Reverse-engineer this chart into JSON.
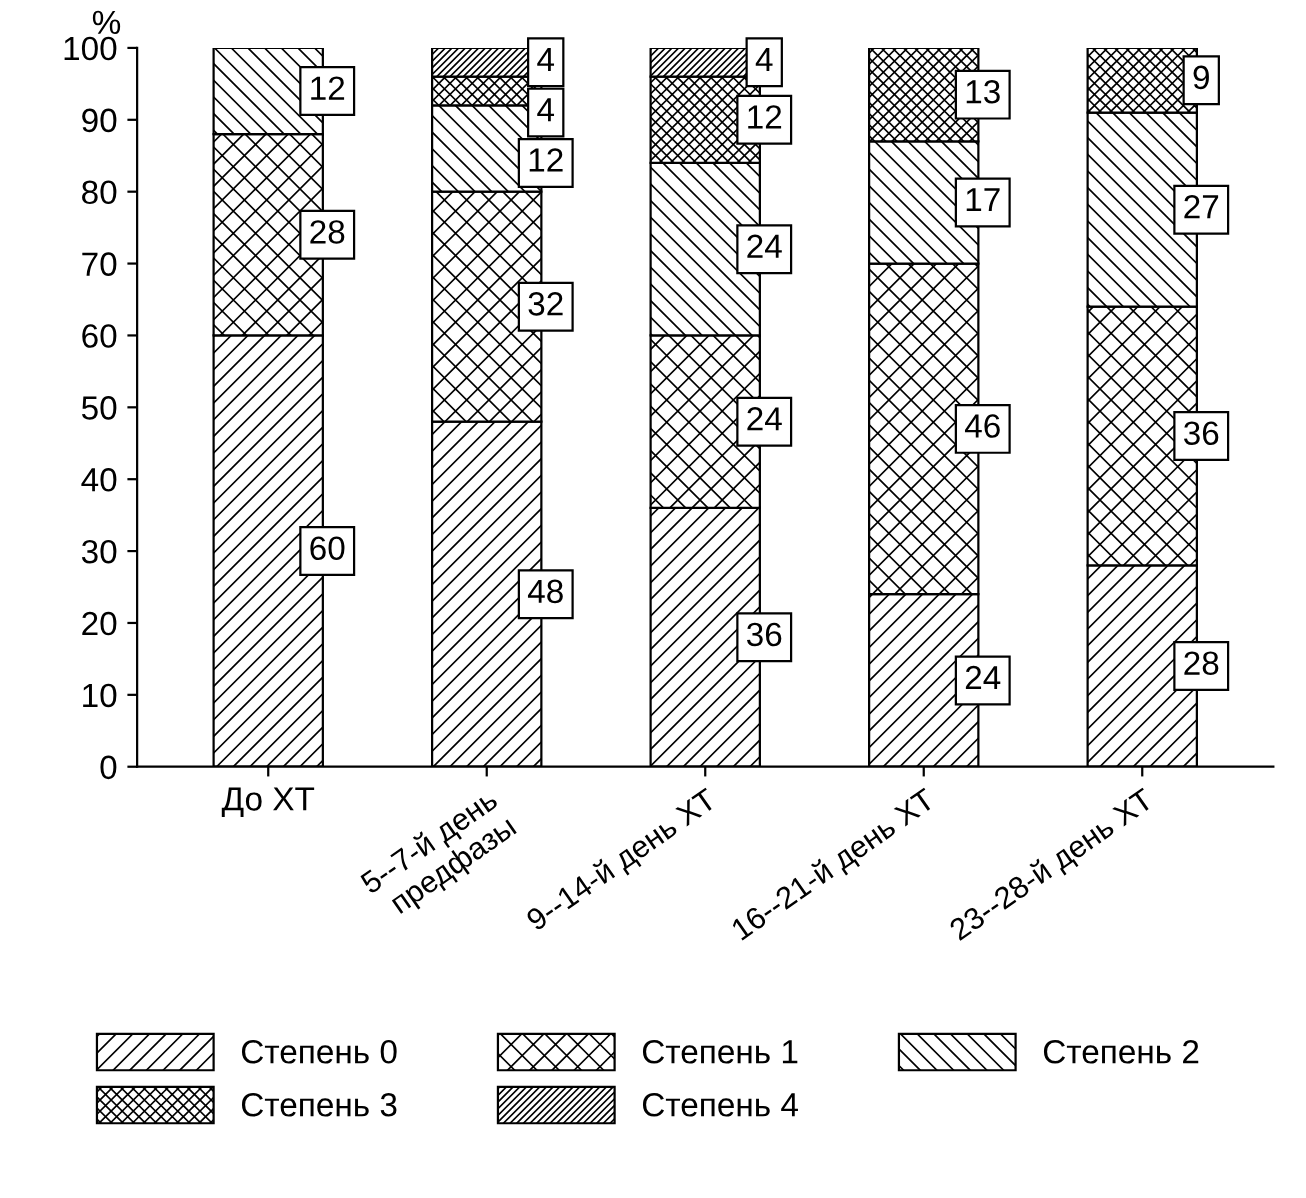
{
  "chart_data": {
    "type": "bar",
    "stacked": true,
    "ylabel": "%",
    "categories": [
      "До ХТ",
      "5--7-й день\nпредфазы",
      "9--14-й день ХТ",
      "16--21-й день ХТ",
      "23--28-й день ХТ"
    ],
    "series": [
      {
        "name": "Степень 0",
        "color": "#000000",
        "values": [
          60,
          48,
          36,
          24,
          28
        ],
        "value_labels": [
          "60",
          "48",
          "36",
          "24",
          "28"
        ]
      },
      {
        "name": "Степень 1",
        "color": "#000000",
        "values": [
          28,
          32,
          24,
          46,
          36
        ],
        "value_labels": [
          "28",
          "32",
          "24",
          "46",
          "36"
        ]
      },
      {
        "name": "Степень 2",
        "color": "#000000",
        "values": [
          12,
          12,
          24,
          17,
          27
        ],
        "value_labels": [
          "12",
          "12",
          "24",
          "17",
          "27"
        ]
      },
      {
        "name": "Степень 3",
        "color": "#000000",
        "values": [
          0,
          4,
          12,
          13,
          9
        ],
        "value_labels": [
          null,
          "4",
          "12",
          "13",
          "9"
        ]
      },
      {
        "name": "Степень 4",
        "color": "#000000",
        "values": [
          0,
          4,
          4,
          0,
          0
        ],
        "value_labels": [
          null,
          "4",
          "4",
          null,
          null
        ]
      }
    ],
    "ylim": [
      0,
      100
    ],
    "yticks": [
      0,
      10,
      20,
      30,
      40,
      50,
      60,
      70,
      80,
      90,
      100
    ],
    "grid": false,
    "legend": "bottom"
  }
}
